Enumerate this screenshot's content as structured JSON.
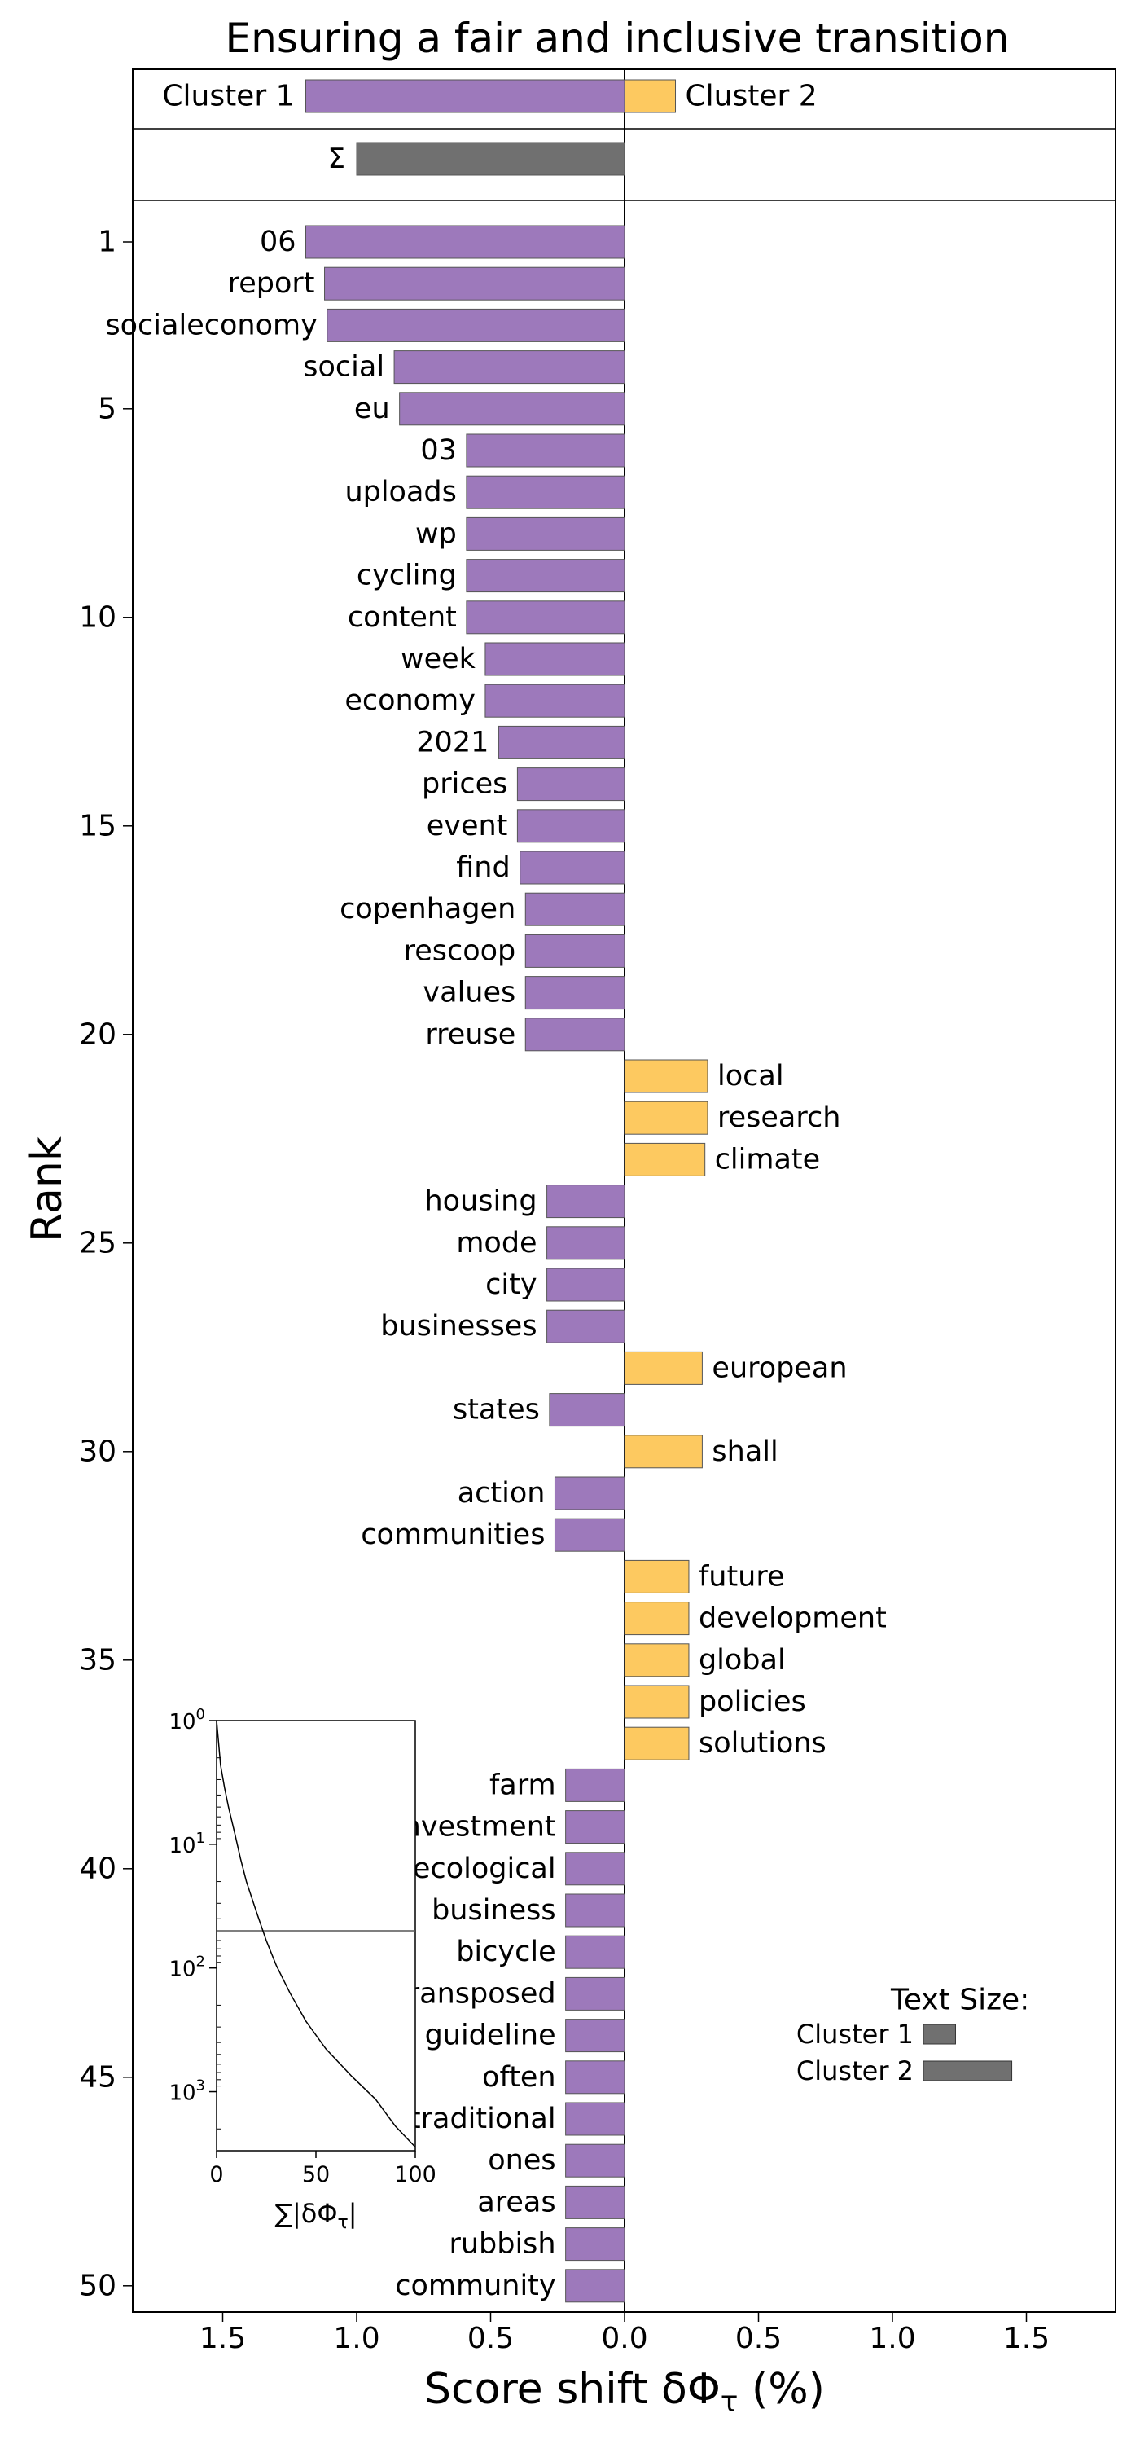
{
  "chart_data": {
    "type": "bar",
    "orientation": "horizontal",
    "title": "Ensuring a fair and inclusive transition",
    "xlabel": "Score shift δΦ_τ (%)",
    "ylabel": "Rank",
    "xlim": [
      -1.5,
      1.5
    ],
    "xticks": [
      {
        "value": -1.5,
        "label": "1.5"
      },
      {
        "value": -1.0,
        "label": "1.0"
      },
      {
        "value": -0.5,
        "label": "0.5"
      },
      {
        "value": 0.0,
        "label": "0.0"
      },
      {
        "value": 0.5,
        "label": "0.5"
      },
      {
        "value": 1.0,
        "label": "1.0"
      },
      {
        "value": 1.5,
        "label": "1.5"
      }
    ],
    "yticks": [
      1,
      5,
      10,
      15,
      20,
      25,
      30,
      35,
      40,
      45,
      50
    ],
    "colors": {
      "cluster1": "#9d79bb",
      "cluster2": "#fdc960",
      "sum": "#707070"
    },
    "summary": {
      "cluster1_label": "Cluster 1",
      "cluster1_value": -1.19,
      "cluster2_label": "Cluster 2",
      "cluster2_value": 0.19,
      "sum_label": "Σ",
      "sum_value": -1.0
    },
    "words": [
      {
        "rank": 1,
        "word": "06",
        "value": -1.19
      },
      {
        "rank": 2,
        "word": "report",
        "value": -1.12
      },
      {
        "rank": 3,
        "word": "socialeconomy",
        "value": -1.11
      },
      {
        "rank": 4,
        "word": "social",
        "value": -0.86
      },
      {
        "rank": 5,
        "word": "eu",
        "value": -0.84
      },
      {
        "rank": 6,
        "word": "03",
        "value": -0.59
      },
      {
        "rank": 7,
        "word": "uploads",
        "value": -0.59
      },
      {
        "rank": 8,
        "word": "wp",
        "value": -0.59
      },
      {
        "rank": 9,
        "word": "cycling",
        "value": -0.59
      },
      {
        "rank": 10,
        "word": "content",
        "value": -0.59
      },
      {
        "rank": 11,
        "word": "week",
        "value": -0.52
      },
      {
        "rank": 12,
        "word": "economy",
        "value": -0.52
      },
      {
        "rank": 13,
        "word": "2021",
        "value": -0.47
      },
      {
        "rank": 14,
        "word": "prices",
        "value": -0.4
      },
      {
        "rank": 15,
        "word": "event",
        "value": -0.4
      },
      {
        "rank": 16,
        "word": "find",
        "value": -0.39
      },
      {
        "rank": 17,
        "word": "copenhagen",
        "value": -0.37
      },
      {
        "rank": 18,
        "word": "rescoop",
        "value": -0.37
      },
      {
        "rank": 19,
        "word": "values",
        "value": -0.37
      },
      {
        "rank": 20,
        "word": "rreuse",
        "value": -0.37
      },
      {
        "rank": 21,
        "word": "local",
        "value": 0.31
      },
      {
        "rank": 22,
        "word": "research",
        "value": 0.31
      },
      {
        "rank": 23,
        "word": "climate",
        "value": 0.3
      },
      {
        "rank": 24,
        "word": "housing",
        "value": -0.29
      },
      {
        "rank": 25,
        "word": "mode",
        "value": -0.29
      },
      {
        "rank": 26,
        "word": "city",
        "value": -0.29
      },
      {
        "rank": 27,
        "word": "businesses",
        "value": -0.29
      },
      {
        "rank": 28,
        "word": "european",
        "value": 0.29
      },
      {
        "rank": 29,
        "word": "states",
        "value": -0.28
      },
      {
        "rank": 30,
        "word": "shall",
        "value": 0.29
      },
      {
        "rank": 31,
        "word": "action",
        "value": -0.26
      },
      {
        "rank": 32,
        "word": "communities",
        "value": -0.26
      },
      {
        "rank": 33,
        "word": "future",
        "value": 0.24
      },
      {
        "rank": 34,
        "word": "development",
        "value": 0.24
      },
      {
        "rank": 35,
        "word": "global",
        "value": 0.24
      },
      {
        "rank": 36,
        "word": "policies",
        "value": 0.24
      },
      {
        "rank": 37,
        "word": "solutions",
        "value": 0.24
      },
      {
        "rank": 38,
        "word": "farm",
        "value": -0.22
      },
      {
        "rank": 39,
        "word": "investment",
        "value": -0.22
      },
      {
        "rank": 40,
        "word": "ecological",
        "value": -0.22
      },
      {
        "rank": 41,
        "word": "business",
        "value": -0.22
      },
      {
        "rank": 42,
        "word": "bicycle",
        "value": -0.22
      },
      {
        "rank": 43,
        "word": "transposed",
        "value": -0.22
      },
      {
        "rank": 44,
        "word": "guideline",
        "value": -0.22
      },
      {
        "rank": 45,
        "word": "often",
        "value": -0.22
      },
      {
        "rank": 46,
        "word": "traditional",
        "value": -0.22
      },
      {
        "rank": 47,
        "word": "ones",
        "value": -0.22
      },
      {
        "rank": 48,
        "word": "areas",
        "value": -0.22
      },
      {
        "rank": 49,
        "word": "rubbish",
        "value": -0.22
      },
      {
        "rank": 50,
        "word": "community",
        "value": -0.22
      }
    ],
    "inset": {
      "type": "line",
      "xlabel": "∑|δΦ_τ|",
      "xlim": [
        0,
        100
      ],
      "xticks": [
        0,
        50,
        100
      ],
      "yscale": "log",
      "yaxis_inverted": true,
      "ylim": [
        1,
        3000
      ],
      "yticks": [
        {
          "value": 1,
          "base": "10",
          "exp": "0"
        },
        {
          "value": 10,
          "base": "10",
          "exp": "1"
        },
        {
          "value": 100,
          "base": "10",
          "exp": "2"
        },
        {
          "value": 1000,
          "base": "10",
          "exp": "3"
        }
      ],
      "reference_rank": 50,
      "points": [
        [
          0,
          1
        ],
        [
          1,
          1.5
        ],
        [
          2,
          2.3
        ],
        [
          4,
          3.5
        ],
        [
          6,
          5
        ],
        [
          9,
          8
        ],
        [
          12,
          13
        ],
        [
          15,
          20
        ],
        [
          20,
          35
        ],
        [
          25,
          60
        ],
        [
          30,
          95
        ],
        [
          37,
          160
        ],
        [
          45,
          270
        ],
        [
          55,
          450
        ],
        [
          68,
          750
        ],
        [
          80,
          1150
        ],
        [
          90,
          1900
        ],
        [
          100,
          2800
        ]
      ]
    },
    "legend": {
      "title": "Text Size:",
      "position": "bottom-right",
      "items": [
        {
          "label": "Cluster 1",
          "size": 0.12
        },
        {
          "label": "Cluster 2",
          "size": 0.33
        }
      ]
    }
  }
}
